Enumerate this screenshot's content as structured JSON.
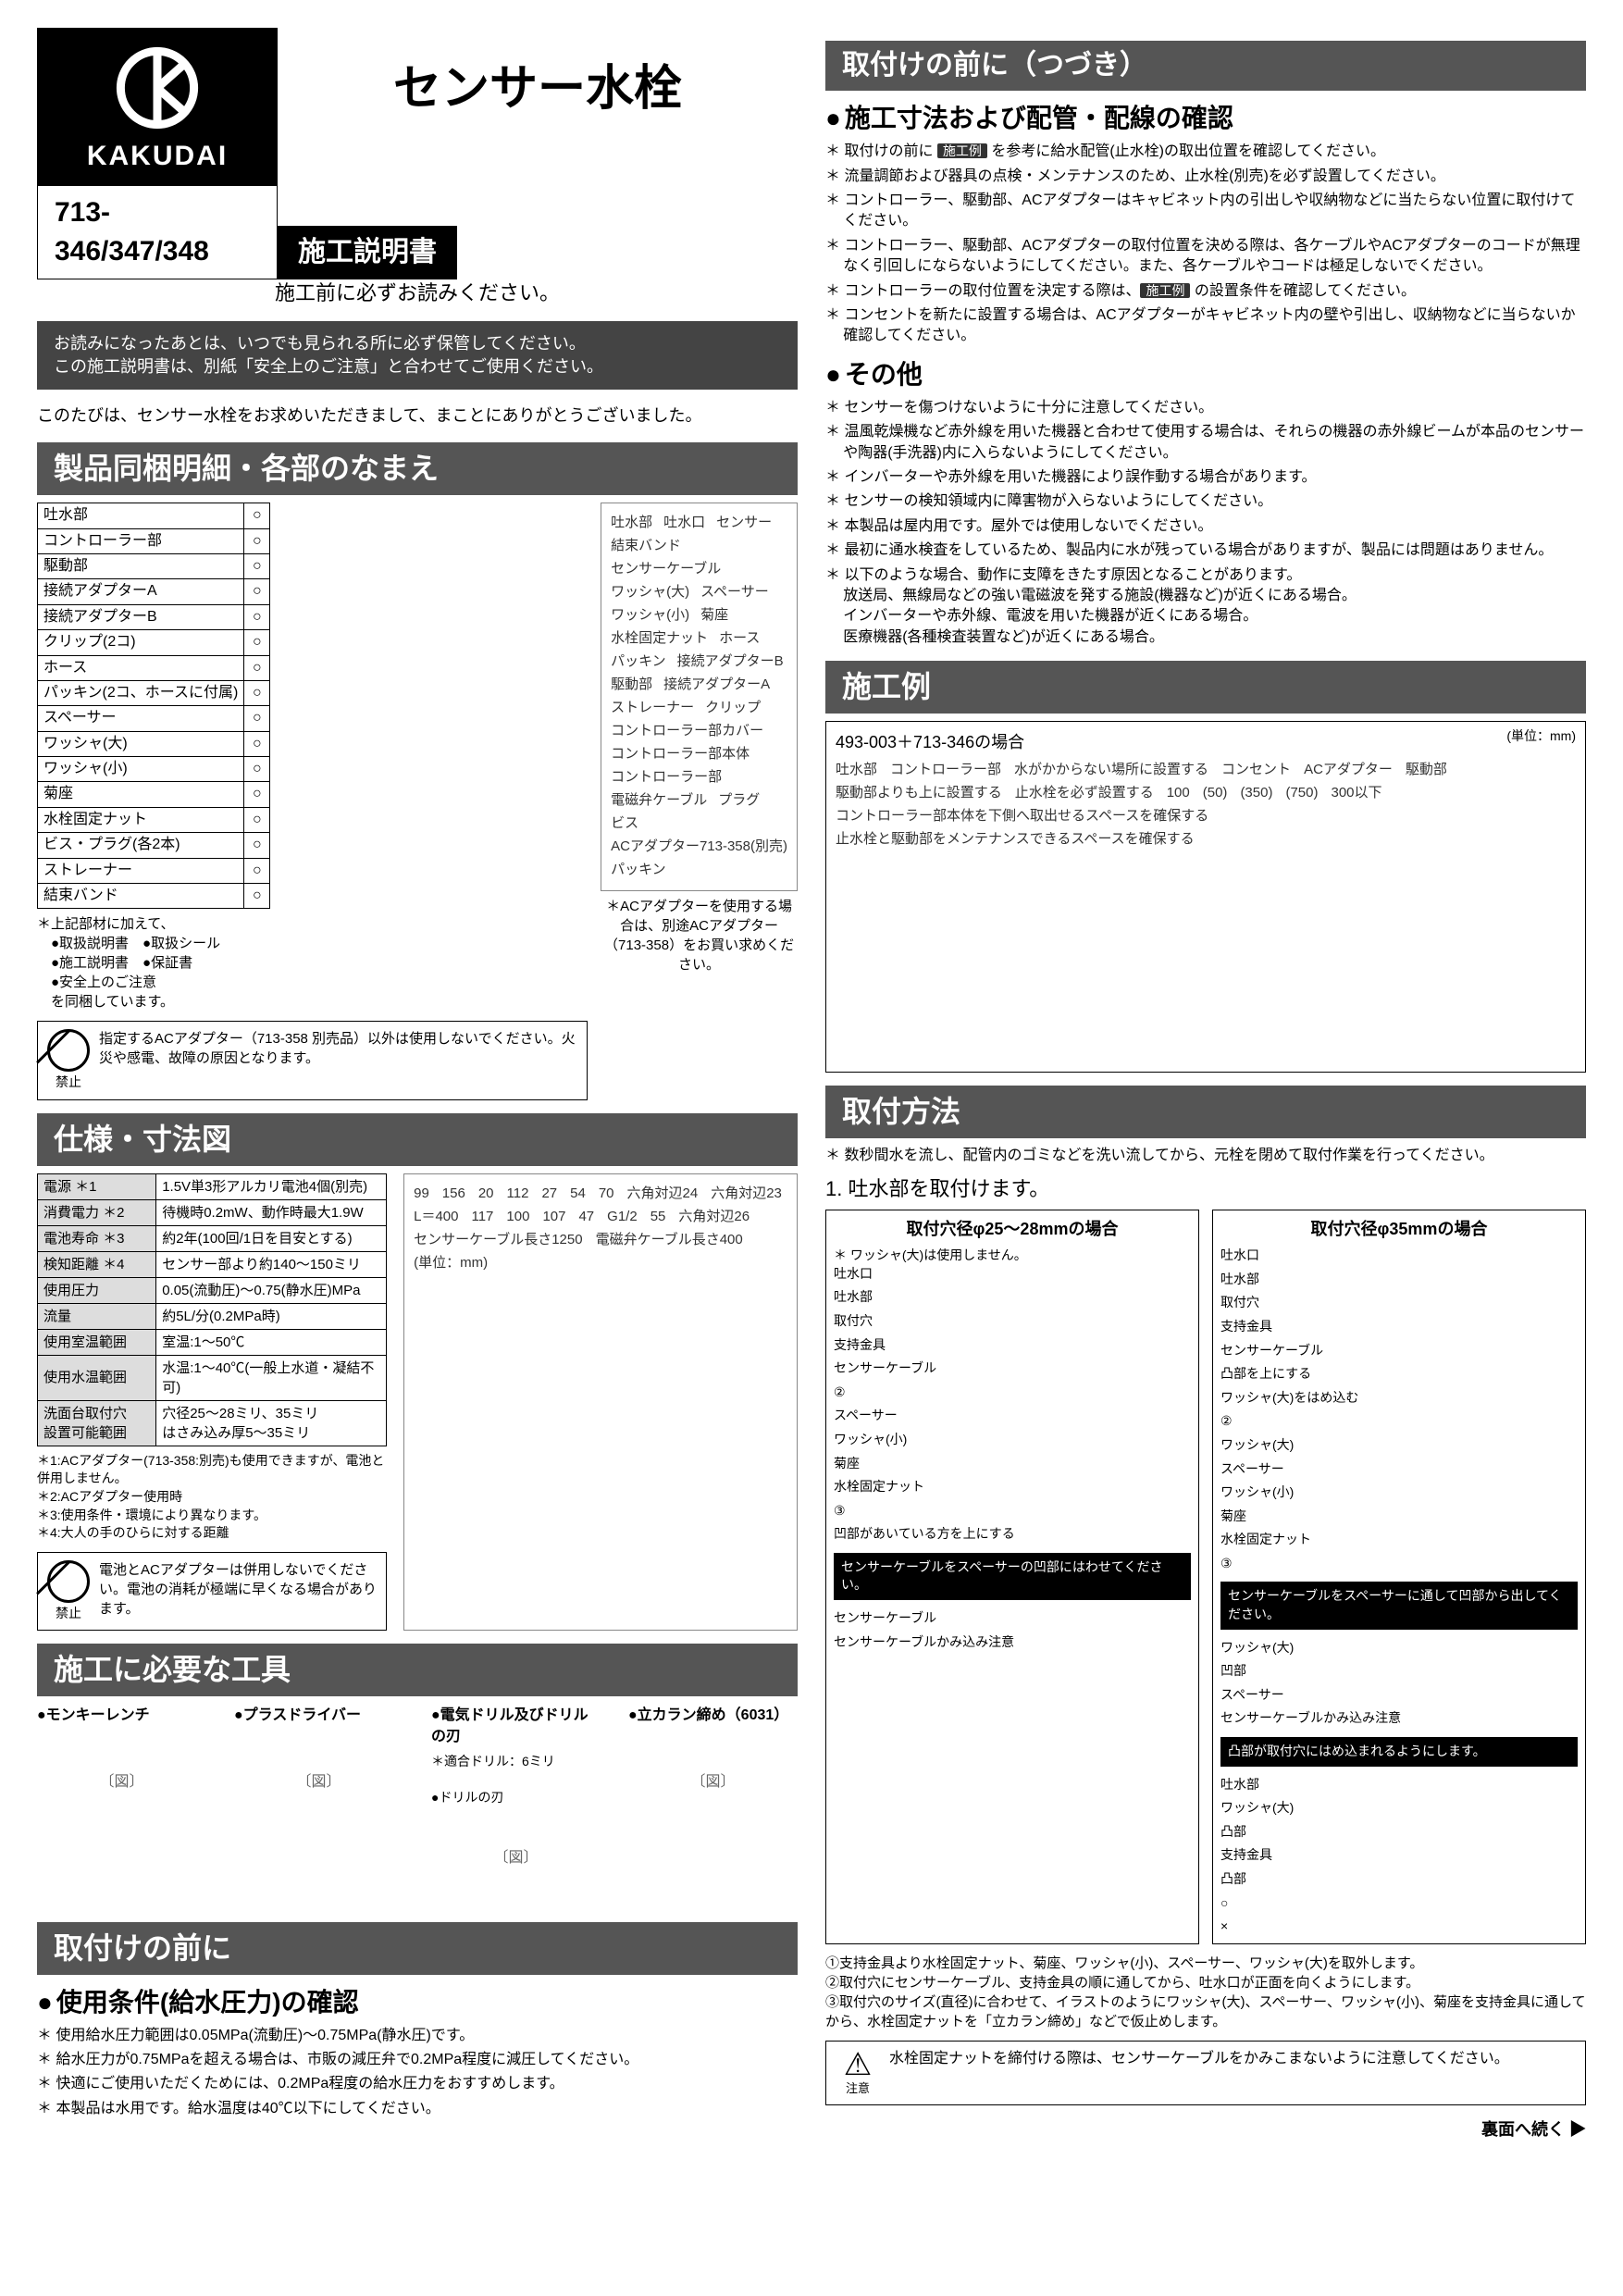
{
  "brand": {
    "name": "KAKUDAI"
  },
  "model_numbers": "713-346/347/348",
  "doc_title_chip": "施工説明書",
  "main_title": "センサー水栓",
  "pre_read": "施工前に必ずお読みください。",
  "dark_strip": "お読みになったあとは、いつでも見られる所に必ず保管してください。\nこの施工説明書は、別紙「安全上のご注意」と合わせてご使用ください。",
  "thanks": "このたびは、センサー水栓をお求めいただきまして、まことにありがとうございました。",
  "sec_parts": "製品同梱明細・各部のなまえ",
  "bom_rows": [
    "吐水部",
    "コントローラー部",
    "駆動部",
    "接続アダプターA",
    "接続アダプターB",
    "クリップ(2コ)",
    "ホース",
    "パッキン(2コ、ホースに付属)",
    "スペーサー",
    "ワッシャ(大)",
    "ワッシャ(小)",
    "菊座",
    "水栓固定ナット",
    "ビス・プラグ(各2本)",
    "ストレーナー",
    "結束バンド"
  ],
  "bom_note": "＊上記部材に加えて、\n　●取扱説明書　●取扱シール\n　●施工説明書　●保証書\n　●安全上のご注意\n　を同梱しています。",
  "prohibit1": {
    "label": "禁止",
    "text": "指定するACアダプター（713-358 別売品）以外は使用しないでください。火災や感電、故障の原因となります。"
  },
  "parts_fig_labels": [
    "吐水部",
    "吐水口",
    "センサー",
    "結束バンド",
    "センサーケーブル",
    "ワッシャ(大)",
    "スペーサー",
    "ワッシャ(小)",
    "菊座",
    "水栓固定ナット",
    "ホース",
    "パッキン",
    "接続アダプターB",
    "駆動部",
    "接続アダプターA",
    "ストレーナー",
    "クリップ",
    "コントローラー部カバー",
    "コントローラー部本体",
    "コントローラー部",
    "電磁弁ケーブル",
    "プラグ",
    "ビス",
    "ACアダプター713-358(別売)",
    "パッキン"
  ],
  "parts_fig_foot": "＊ACアダプターを使用する場合は、別途ACアダプター（713-358）をお買い求めください。",
  "sec_spec": "仕様・寸法図",
  "spec_rows": [
    [
      "電源 ＊1",
      "1.5V単3形アルカリ電池4個(別売)"
    ],
    [
      "消費電力 ＊2",
      "待機時0.2mW、動作時最大1.9W"
    ],
    [
      "電池寿命 ＊3",
      "約2年(100回/1日を目安とする)"
    ],
    [
      "検知距離 ＊4",
      "センサー部より約140〜150ミリ"
    ],
    [
      "使用圧力",
      "0.05(流動圧)〜0.75(静水圧)MPa"
    ],
    [
      "流量",
      "約5L/分(0.2MPa時)"
    ],
    [
      "使用室温範囲",
      "室温:1〜50℃"
    ],
    [
      "使用水温範囲",
      "水温:1〜40℃(一般上水道・凝結不可)"
    ],
    [
      "洗面台取付穴\n設置可能範囲",
      "穴径25〜28ミリ、35ミリ\nはさみ込み厚5〜35ミリ"
    ]
  ],
  "spec_notes": [
    "＊1:ACアダプター(713-358:別売)も使用できますが、電池と併用しません。",
    "＊2:ACアダプター使用時",
    "＊3:使用条件・環境により異なります。",
    "＊4:大人の手のひらに対する距離"
  ],
  "prohibit2": {
    "label": "禁止",
    "text": "電池とACアダプターは併用しないでください。電池の消耗が極端に早くなる場合があります。"
  },
  "dim_labels": [
    "99",
    "156",
    "20",
    "112",
    "27",
    "54",
    "70",
    "六角対辺24",
    "六角対辺23",
    "L＝400",
    "117",
    "100",
    "107",
    "47",
    "G1/2",
    "55",
    "六角対辺26",
    "センサーケーブル長さ1250",
    "電磁弁ケーブル長さ400",
    "(単位：mm)"
  ],
  "sec_tools": "施工に必要な工具",
  "tools": [
    {
      "title": "●モンキーレンチ",
      "sub": ""
    },
    {
      "title": "●プラスドライバー",
      "sub": ""
    },
    {
      "title": "●電気ドリル及びドリルの刃",
      "sub": "＊適合ドリル：6ミリ\n\n●ドリルの刃"
    },
    {
      "title": "●立カラン締め（6031）",
      "sub": ""
    }
  ],
  "sec_before": "取付けの前に",
  "sub_pressure": "使用条件(給水圧力)の確認",
  "pressure_items": [
    "使用給水圧力範囲は0.05MPa(流動圧)〜0.75MPa(静水圧)です。",
    "給水圧力が0.75MPaを超える場合は、市販の減圧弁で0.2MPa程度に減圧してください。",
    "快適にご使用いただくためには、0.2MPa程度の給水圧力をおすすめします。",
    "本製品は水用です。給水温度は40℃以下にしてください。"
  ],
  "sec_before_cont": "取付けの前に（つづき）",
  "sub_dim_check": "施工寸法および配管・配線の確認",
  "dim_check_items": [
    "取付けの前に 施工例 を参考に給水配管(止水栓)の取出位置を確認してください。",
    "流量調節および器具の点検・メンテナンスのため、止水栓(別売)を必ず設置してください。",
    "コントローラー、駆動部、ACアダプターはキャビネット内の引出しや収納物などに当たらない位置に取付けてください。",
    "コントローラー、駆動部、ACアダプターの取付位置を決める際は、各ケーブルやACアダプターのコードが無理なく引回しにならないようにしてください。また、各ケーブルやコードは極足しないでください。",
    "コントローラーの取付位置を決定する際は、施工例 の設置条件を確認してください。",
    "コンセントを新たに設置する場合は、ACアダプターがキャビネット内の壁や引出し、収納物などに当らないか確認してください。"
  ],
  "sub_other": "その他",
  "other_items": [
    "センサーを傷つけないように十分に注意してください。",
    "温風乾燥機など赤外線を用いた機器と合わせて使用する場合は、それらの機器の赤外線ビームが本品のセンサーや陶器(手洗器)内に入らないようにしてください。",
    "インバーターや赤外線を用いた機器により誤作動する場合があります。",
    "センサーの検知領域内に障害物が入らないようにしてください。",
    "本製品は屋内用です。屋外では使用しないでください。",
    "最初に通水検査をしているため、製品内に水が残っている場合がありますが、製品には問題はありません。",
    "以下のような場合、動作に支障をきたす原因となることがあります。\n放送局、無線局などの強い電磁波を発する施設(機器など)が近くにある場合。\nインバーターや赤外線、電波を用いた機器が近くにある場合。\n医療機器(各種検査装置など)が近くにある場合。"
  ],
  "sec_example": "施工例",
  "example_title": "493-003＋713-346の場合",
  "example_unit": "(単位：mm)",
  "example_labels": [
    "吐水部",
    "コントローラー部",
    "水がかからない場所に設置する",
    "コンセント",
    "ACアダプター",
    "駆動部",
    "駆動部よりも上に設置する",
    "止水栓を必ず設置する",
    "100",
    "(50)",
    "(350)",
    "(750)",
    "300以下",
    "コントローラー部本体を下側へ取出せるスペースを確保する",
    "止水栓と駆動部をメンテナンスできるスペースを確保する"
  ],
  "sec_mounting": "取付方法",
  "mount_note": "＊ 数秒間水を流し、配管内のゴミなどを洗い流してから、元栓を閉めて取付作業を行ってください。",
  "mount_step1": "1. 吐水部を取付けます。",
  "panelA_title": "取付穴径φ25〜28mmの場合",
  "panelA_note": "＊ ワッシャ(大)は使用しません。",
  "panelA_labels": [
    "吐水口",
    "吐水部",
    "取付穴",
    "支持金具",
    "センサーケーブル",
    "②",
    "スペーサー",
    "ワッシャ(小)",
    "菊座",
    "水栓固定ナット",
    "③",
    "凹部があいている方を上にする"
  ],
  "panelA_black": "センサーケーブルをスペーサーの凹部にはわせてください。",
  "panelA_bottom": [
    "センサーケーブル",
    "センサーケーブルかみ込み注意"
  ],
  "panelB_title": "取付穴径φ35mmの場合",
  "panelB_labels": [
    "吐水口",
    "吐水部",
    "取付穴",
    "支持金具",
    "センサーケーブル",
    "凸部を上にする",
    "ワッシャ(大)をはめ込む",
    "②",
    "ワッシャ(大)",
    "スペーサー",
    "ワッシャ(小)",
    "菊座",
    "水栓固定ナット",
    "③"
  ],
  "panelB_black1": "センサーケーブルをスペーサーに通して凹部から出してください。",
  "panelB_mid": [
    "ワッシャ(大)",
    "凹部",
    "スペーサー",
    "センサーケーブルかみ込み注意"
  ],
  "panelB_black2": "凸部が取付穴にはめ込まれるようにします。",
  "panelB_bottom": [
    "吐水部",
    "ワッシャ(大)",
    "凸部",
    "支持金具",
    "凸部",
    "○",
    "×"
  ],
  "foot_steps": [
    "①支持金具より水栓固定ナット、菊座、ワッシャ(小)、スペーサー、ワッシャ(大)を取外します。",
    "②取付穴にセンサーケーブル、支持金具の順に通してから、吐水口が正面を向くようにします。",
    "③取付穴のサイズ(直径)に合わせて、イラストのようにワッシャ(大)、スペーサー、ワッシャ(小)、菊座を支持金具に通してから、水栓固定ナットを「立カラン締め」などで仮止めします。"
  ],
  "caution": {
    "label": "注意",
    "text": "水栓固定ナットを締付ける際は、センサーケーブルをかみこまないように注意してください。"
  },
  "continue": "裏面へ続く ▶"
}
